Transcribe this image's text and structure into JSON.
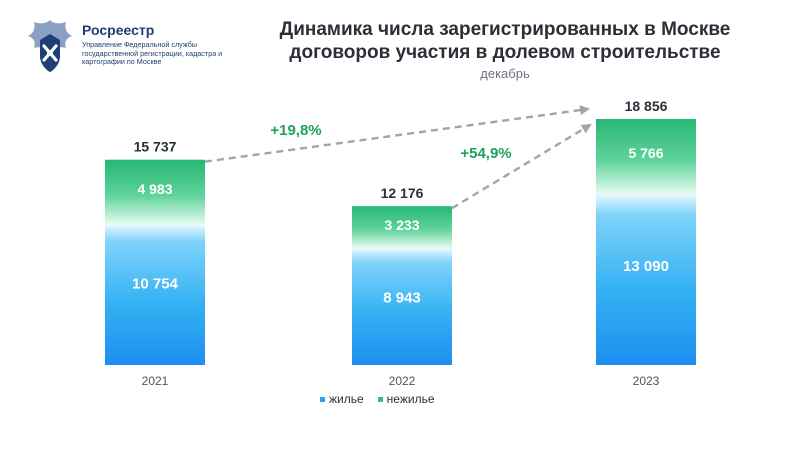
{
  "logo": {
    "name": "Росреестр",
    "subtitle": "Управление Федеральной службы государственной регистрации, кадастра и картографии по Москве"
  },
  "title": "Динамика числа зарегистрированных в Москве договоров участия в долевом строительстве",
  "subtitle": "декабрь",
  "colors": {
    "residential": "#2aa3f0",
    "residential_top": "#8fd9fb",
    "nonresidential": "#2fbf7a",
    "nonresidential_bottom": "#c8f2df",
    "growth": "#1aa35a",
    "arrow": "#a0a4ab"
  },
  "legend": {
    "residential": "жилье",
    "nonresidential": "нежилье"
  },
  "chart_data": {
    "type": "bar",
    "stacked": true,
    "categories": [
      "2021",
      "2022",
      "2023"
    ],
    "series": [
      {
        "name": "жилье",
        "values": [
          10754,
          8943,
          13090
        ]
      },
      {
        "name": "нежилье",
        "values": [
          4983,
          3233,
          5766
        ]
      }
    ],
    "value_labels": {
      "residential": [
        "10 754",
        "8 943",
        "13 090"
      ],
      "nonresidential": [
        "4 983",
        "3 233",
        "5 766"
      ]
    },
    "totals": [
      15737,
      12176,
      18856
    ],
    "total_labels": [
      "15 737",
      "12 176",
      "18 856"
    ],
    "annotations": [
      {
        "from": "2021",
        "to": "2023",
        "text": "+19,8%"
      },
      {
        "from": "2022",
        "to": "2023",
        "text": "+54,9%"
      }
    ],
    "ylim": [
      0,
      18856
    ],
    "grid": false,
    "legend_position": "bottom"
  }
}
